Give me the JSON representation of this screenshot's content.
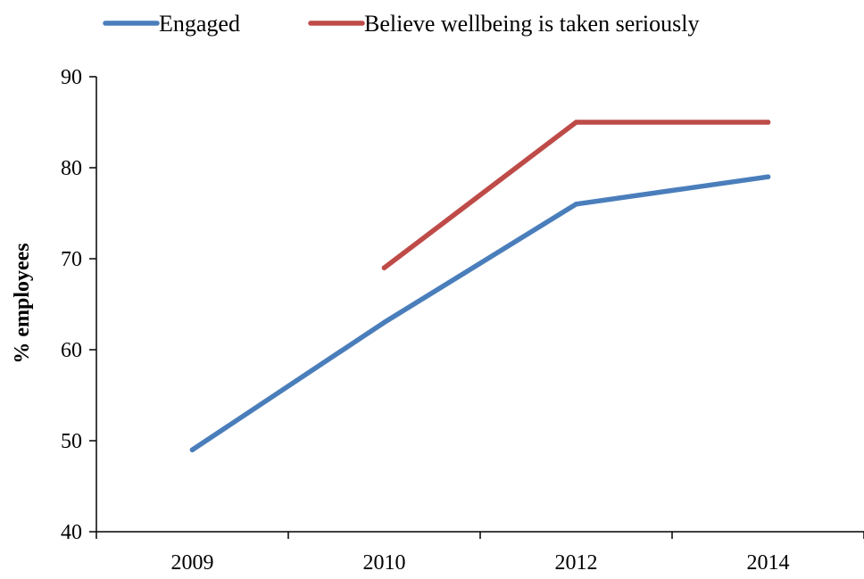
{
  "chart_data": {
    "type": "line",
    "categories": [
      "2009",
      "2010",
      "2012",
      "2014"
    ],
    "series": [
      {
        "name": "Engaged",
        "values": [
          49,
          63,
          76,
          79
        ],
        "color": "#4a7ebb"
      },
      {
        "name": "Believe wellbeing is taken seriously",
        "values": [
          null,
          69,
          85,
          85
        ],
        "color": "#be4b48"
      }
    ],
    "ylabel": "% employees",
    "xlabel": "",
    "ylim": [
      40,
      90
    ],
    "yticks": [
      40,
      50,
      60,
      70,
      80,
      90
    ],
    "legend_position": "top",
    "grid": false
  }
}
